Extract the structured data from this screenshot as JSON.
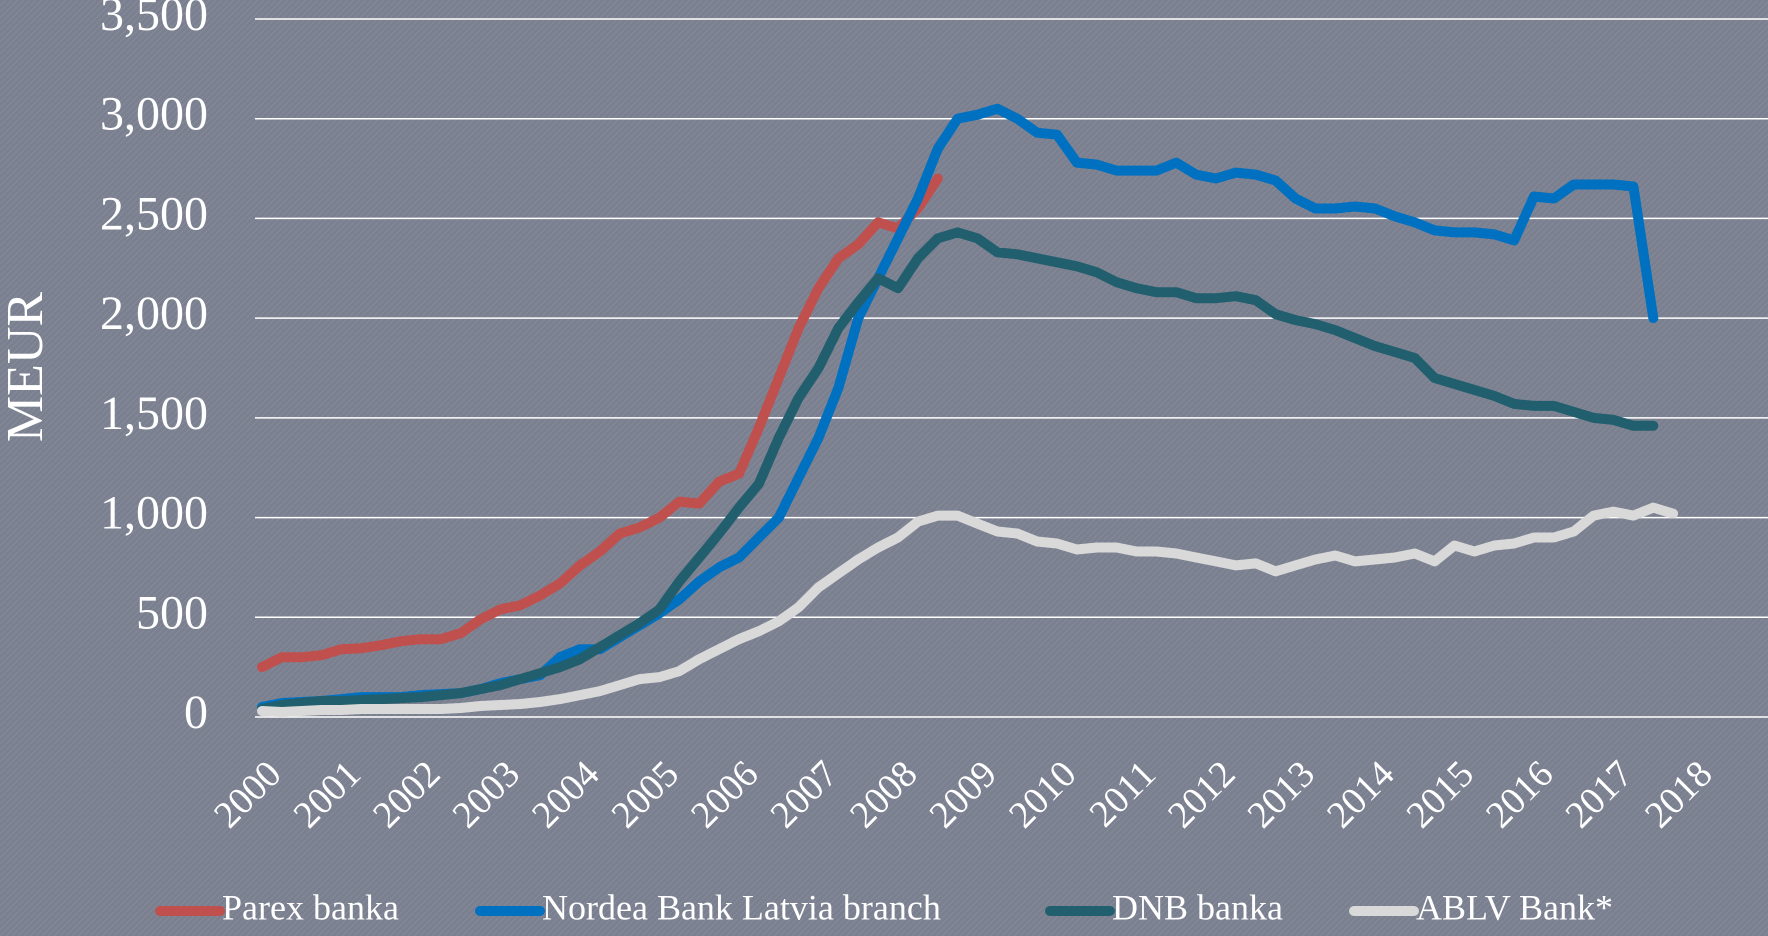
{
  "chart_data": {
    "type": "line",
    "y_label": "MEUR",
    "x": [
      2000,
      2000.25,
      2000.5,
      2000.75,
      2001,
      2001.25,
      2001.5,
      2001.75,
      2002,
      2002.25,
      2002.5,
      2002.75,
      2003,
      2003.25,
      2003.5,
      2003.75,
      2004,
      2004.25,
      2004.5,
      2004.75,
      2005,
      2005.25,
      2005.5,
      2005.75,
      2006,
      2006.25,
      2006.5,
      2006.75,
      2007,
      2007.25,
      2007.5,
      2007.75,
      2008,
      2008.25,
      2008.5,
      2008.75,
      2009,
      2009.25,
      2009.5,
      2009.75,
      2010,
      2010.25,
      2010.5,
      2010.75,
      2011,
      2011.25,
      2011.5,
      2011.75,
      2012,
      2012.25,
      2012.5,
      2012.75,
      2013,
      2013.25,
      2013.5,
      2013.75,
      2014,
      2014.25,
      2014.5,
      2014.75,
      2015,
      2015.25,
      2015.5,
      2015.75,
      2016,
      2016.25,
      2016.5,
      2016.75,
      2017,
      2017.25,
      2017.5,
      2017.75
    ],
    "series": [
      {
        "name": "Parex banka",
        "color": "#c0504d",
        "values": [
          250,
          300,
          300,
          310,
          340,
          345,
          360,
          380,
          390,
          390,
          420,
          490,
          540,
          560,
          610,
          670,
          760,
          830,
          920,
          950,
          1000,
          1080,
          1070,
          1180,
          1220,
          1450,
          1700,
          1950,
          2150,
          2300,
          2370,
          2480,
          2450,
          2550,
          2700,
          null,
          null,
          null,
          null,
          null,
          null,
          null,
          null,
          null,
          null,
          null,
          null,
          null,
          null,
          null,
          null,
          null,
          null,
          null,
          null,
          null,
          null,
          null,
          null,
          null,
          null,
          null,
          null,
          null,
          null,
          null,
          null,
          null,
          null,
          null,
          null,
          null
        ]
      },
      {
        "name": "Nordea Bank Latvia branch",
        "color": "#0070c0",
        "values": [
          50,
          70,
          75,
          80,
          90,
          100,
          100,
          100,
          110,
          115,
          120,
          140,
          170,
          190,
          210,
          300,
          340,
          340,
          400,
          460,
          520,
          590,
          680,
          750,
          800,
          900,
          1000,
          1200,
          1400,
          1650,
          2000,
          2200,
          2400,
          2600,
          2850,
          3000,
          3020,
          3050,
          3000,
          2930,
          2920,
          2780,
          2770,
          2740,
          2740,
          2740,
          2780,
          2720,
          2700,
          2730,
          2720,
          2690,
          2600,
          2550,
          2550,
          2560,
          2550,
          2510,
          2480,
          2440,
          2430,
          2430,
          2420,
          2390,
          2610,
          2600,
          2670,
          2670,
          2670,
          2660,
          2000,
          null
        ]
      },
      {
        "name": "DNB banka",
        "color": "#215f6e",
        "values": [
          40,
          60,
          70,
          80,
          80,
          85,
          90,
          95,
          100,
          110,
          120,
          140,
          160,
          190,
          220,
          250,
          290,
          350,
          410,
          470,
          540,
          680,
          800,
          920,
          1050,
          1170,
          1400,
          1600,
          1750,
          1950,
          2080,
          2200,
          2150,
          2300,
          2400,
          2430,
          2400,
          2330,
          2320,
          2300,
          2280,
          2260,
          2230,
          2180,
          2150,
          2130,
          2130,
          2100,
          2100,
          2110,
          2090,
          2020,
          1990,
          1970,
          1940,
          1900,
          1860,
          1830,
          1800,
          1700,
          1670,
          1640,
          1610,
          1570,
          1560,
          1560,
          1530,
          1500,
          1490,
          1460,
          1460,
          null
        ]
      },
      {
        "name": "ABLV Bank*",
        "color": "#d9d9d9",
        "values": [
          30,
          25,
          30,
          35,
          35,
          40,
          40,
          40,
          40,
          40,
          45,
          55,
          60,
          65,
          75,
          90,
          110,
          130,
          160,
          190,
          200,
          230,
          290,
          340,
          390,
          430,
          480,
          550,
          650,
          720,
          790,
          850,
          900,
          980,
          1010,
          1010,
          970,
          930,
          920,
          880,
          870,
          840,
          850,
          850,
          830,
          830,
          820,
          800,
          780,
          760,
          770,
          730,
          760,
          790,
          810,
          780,
          790,
          800,
          820,
          780,
          860,
          830,
          860,
          870,
          900,
          900,
          930,
          1010,
          1030,
          1010,
          1050,
          1020
        ]
      }
    ],
    "xlim": [
      2000,
      2018
    ],
    "xticks": [
      2000,
      2001,
      2002,
      2003,
      2004,
      2005,
      2006,
      2007,
      2008,
      2009,
      2010,
      2011,
      2012,
      2013,
      2014,
      2015,
      2016,
      2017,
      2018
    ],
    "ylim": [
      0,
      3500
    ],
    "yticks": [
      0,
      {
        "value": 500,
        "label": "500"
      },
      {
        "value": 1000,
        "label": "1,000"
      },
      {
        "value": 1500,
        "label": "1,500"
      },
      {
        "value": 2000,
        "label": "2,000"
      },
      {
        "value": 2500,
        "label": "2,500"
      },
      {
        "value": 3000,
        "label": "3,000"
      },
      {
        "value": 3500,
        "label": "3,500"
      }
    ],
    "grid": true,
    "legend": "bottom"
  }
}
